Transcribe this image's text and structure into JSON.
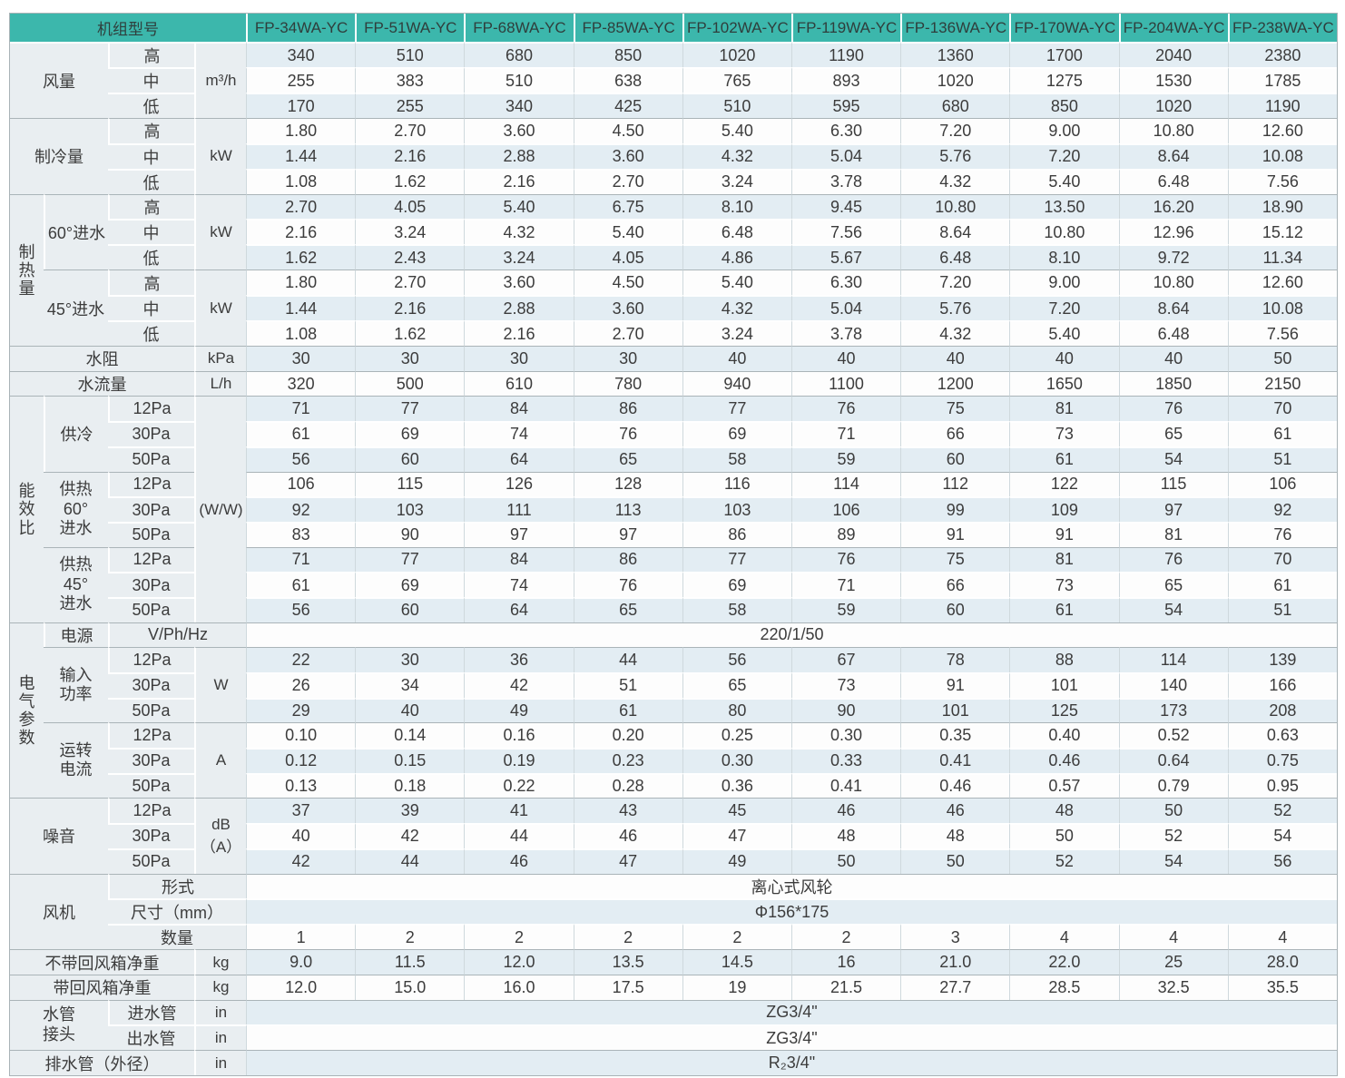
{
  "header": {
    "corner": "机组型号",
    "models": [
      "FP-34WA-YC",
      "FP-51WA-YC",
      "FP-68WA-YC",
      "FP-85WA-YC",
      "FP-102WA-YC",
      "FP-119WA-YC",
      "FP-136WA-YC",
      "FP-170WA-YC",
      "FP-204WA-YC",
      "FP-238WA-YC"
    ]
  },
  "labels": {
    "high": "高",
    "mid": "中",
    "low": "低",
    "p12": "12Pa",
    "p30": "30Pa",
    "p50": "50Pa"
  },
  "colors": {
    "header_bg": "#3cb7ac",
    "header_text": "#2f3e3c",
    "row_alt": "#e3edf3",
    "row_plain": "#fdfdfd",
    "label_bg": "#e9eef1",
    "outer_border": "#a9b3b7",
    "grid_line": "#cfd9dd"
  },
  "airflow": {
    "label": "风量",
    "unit": "m³/h",
    "high": [
      "340",
      "510",
      "680",
      "850",
      "1020",
      "1190",
      "1360",
      "1700",
      "2040",
      "2380"
    ],
    "mid": [
      "255",
      "383",
      "510",
      "638",
      "765",
      "893",
      "1020",
      "1275",
      "1530",
      "1785"
    ],
    "low": [
      "170",
      "255",
      "340",
      "425",
      "510",
      "595",
      "680",
      "850",
      "1020",
      "1190"
    ]
  },
  "cooling": {
    "label": "制冷量",
    "unit": "kW",
    "high": [
      "1.80",
      "2.70",
      "3.60",
      "4.50",
      "5.40",
      "6.30",
      "7.20",
      "9.00",
      "10.80",
      "12.60"
    ],
    "mid": [
      "1.44",
      "2.16",
      "2.88",
      "3.60",
      "4.32",
      "5.04",
      "5.76",
      "7.20",
      "8.64",
      "10.08"
    ],
    "low": [
      "1.08",
      "1.62",
      "2.16",
      "2.70",
      "3.24",
      "3.78",
      "4.32",
      "5.40",
      "6.48",
      "7.56"
    ]
  },
  "heating": {
    "label": "制\n热\n量",
    "w60": {
      "label": "60°进水",
      "unit": "kW",
      "high": [
        "2.70",
        "4.05",
        "5.40",
        "6.75",
        "8.10",
        "9.45",
        "10.80",
        "13.50",
        "16.20",
        "18.90"
      ],
      "mid": [
        "2.16",
        "3.24",
        "4.32",
        "5.40",
        "6.48",
        "7.56",
        "8.64",
        "10.80",
        "12.96",
        "15.12"
      ],
      "low": [
        "1.62",
        "2.43",
        "3.24",
        "4.05",
        "4.86",
        "5.67",
        "6.48",
        "8.10",
        "9.72",
        "11.34"
      ]
    },
    "w45": {
      "label": "45°进水",
      "unit": "kW",
      "high": [
        "1.80",
        "2.70",
        "3.60",
        "4.50",
        "5.40",
        "6.30",
        "7.20",
        "9.00",
        "10.80",
        "12.60"
      ],
      "mid": [
        "1.44",
        "2.16",
        "2.88",
        "3.60",
        "4.32",
        "5.04",
        "5.76",
        "7.20",
        "8.64",
        "10.08"
      ],
      "low": [
        "1.08",
        "1.62",
        "2.16",
        "2.70",
        "3.24",
        "3.78",
        "4.32",
        "5.40",
        "6.48",
        "7.56"
      ]
    }
  },
  "water_resistance": {
    "label": "水阻",
    "unit": "kPa",
    "values": [
      "30",
      "30",
      "30",
      "30",
      "40",
      "40",
      "40",
      "40",
      "40",
      "50"
    ]
  },
  "water_flow": {
    "label": "水流量",
    "unit": "L/h",
    "values": [
      "320",
      "500",
      "610",
      "780",
      "940",
      "1100",
      "1200",
      "1650",
      "1850",
      "2150"
    ]
  },
  "eer": {
    "label": "能\n效\n比",
    "unit": "(W/W)",
    "cool": {
      "label": "供冷",
      "p12": [
        "71",
        "77",
        "84",
        "86",
        "77",
        "76",
        "75",
        "81",
        "76",
        "70"
      ],
      "p30": [
        "61",
        "69",
        "74",
        "76",
        "69",
        "71",
        "66",
        "73",
        "65",
        "61"
      ],
      "p50": [
        "56",
        "60",
        "64",
        "65",
        "58",
        "59",
        "60",
        "61",
        "54",
        "51"
      ]
    },
    "heat60": {
      "label": "供热\n60°\n进水",
      "p12": [
        "106",
        "115",
        "126",
        "128",
        "116",
        "114",
        "112",
        "122",
        "115",
        "106"
      ],
      "p30": [
        "92",
        "103",
        "111",
        "113",
        "103",
        "106",
        "99",
        "109",
        "97",
        "92"
      ],
      "p50": [
        "83",
        "90",
        "97",
        "97",
        "86",
        "89",
        "91",
        "91",
        "81",
        "76"
      ]
    },
    "heat45": {
      "label": "供热\n45°\n进水",
      "p12": [
        "71",
        "77",
        "84",
        "86",
        "77",
        "76",
        "75",
        "81",
        "76",
        "70"
      ],
      "p30": [
        "61",
        "69",
        "74",
        "76",
        "69",
        "71",
        "66",
        "73",
        "65",
        "61"
      ],
      "p50": [
        "56",
        "60",
        "64",
        "65",
        "58",
        "59",
        "60",
        "61",
        "54",
        "51"
      ]
    }
  },
  "electrical": {
    "label": "电\n气\n参\n数",
    "power_supply": {
      "label": "电源",
      "unit": "V/Ph/Hz",
      "value": "220/1/50"
    },
    "input_power": {
      "label": "输入\n功率",
      "unit": "W",
      "p12": [
        "22",
        "30",
        "36",
        "44",
        "56",
        "67",
        "78",
        "88",
        "114",
        "139"
      ],
      "p30": [
        "26",
        "34",
        "42",
        "51",
        "65",
        "73",
        "91",
        "101",
        "140",
        "166"
      ],
      "p50": [
        "29",
        "40",
        "49",
        "61",
        "80",
        "90",
        "101",
        "125",
        "173",
        "208"
      ]
    },
    "current": {
      "label": "运转\n电流",
      "unit": "A",
      "p12": [
        "0.10",
        "0.14",
        "0.16",
        "0.20",
        "0.25",
        "0.30",
        "0.35",
        "0.40",
        "0.52",
        "0.63"
      ],
      "p30": [
        "0.12",
        "0.15",
        "0.19",
        "0.23",
        "0.30",
        "0.33",
        "0.41",
        "0.46",
        "0.64",
        "0.75"
      ],
      "p50": [
        "0.13",
        "0.18",
        "0.22",
        "0.28",
        "0.36",
        "0.41",
        "0.46",
        "0.57",
        "0.79",
        "0.95"
      ]
    }
  },
  "noise": {
    "label": "噪音",
    "unit": "dB（A）",
    "p12": [
      "37",
      "39",
      "41",
      "43",
      "45",
      "46",
      "46",
      "48",
      "50",
      "52"
    ],
    "p30": [
      "40",
      "42",
      "44",
      "46",
      "47",
      "48",
      "48",
      "50",
      "52",
      "54"
    ],
    "p50": [
      "42",
      "44",
      "46",
      "47",
      "49",
      "50",
      "50",
      "52",
      "54",
      "56"
    ]
  },
  "fan": {
    "label": "风机",
    "type": {
      "label": "形式",
      "value": "离心式风轮"
    },
    "size": {
      "label": "尺寸（mm）",
      "value": "Φ156*175"
    },
    "qty": {
      "label": "数量",
      "values": [
        "1",
        "2",
        "2",
        "2",
        "2",
        "2",
        "3",
        "4",
        "4",
        "4"
      ]
    }
  },
  "weight_without_box": {
    "label": "不带回风箱净重",
    "unit": "kg",
    "values": [
      "9.0",
      "11.5",
      "12.0",
      "13.5",
      "14.5",
      "16",
      "21.0",
      "22.0",
      "25",
      "28.0"
    ]
  },
  "weight_with_box": {
    "label": "带回风箱净重",
    "unit": "kg",
    "values": [
      "12.0",
      "15.0",
      "16.0",
      "17.5",
      "19",
      "21.5",
      "27.7",
      "28.5",
      "32.5",
      "35.5"
    ]
  },
  "pipes": {
    "label": "水管\n接头",
    "inlet": {
      "label": "进水管",
      "unit": "in",
      "value": "ZG3/4\""
    },
    "outlet": {
      "label": "出水管",
      "unit": "in",
      "value": "ZG3/4\""
    }
  },
  "drain": {
    "label": "排水管（外径）",
    "unit": "in",
    "value": "R₂3/4\""
  }
}
